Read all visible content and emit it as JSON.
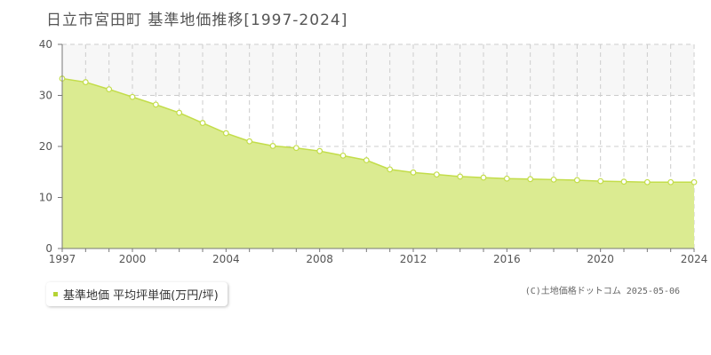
{
  "title": "日立市宮田町 基準地価推移[1997-2024]",
  "legend": {
    "label": "基準地価 平均坪単価(万円/坪)"
  },
  "copyright": "(C)土地価格ドットコム 2025-05-06",
  "colors": {
    "area_fill": "#dbeb91",
    "line": "#c3dd4a",
    "marker_fill": "#ffffff",
    "band": "#f7f7f7",
    "grid": "#cccccc",
    "legend_swatch": "#b5d335"
  },
  "chart_data": {
    "type": "area",
    "title": "日立市宮田町 基準地価推移[1997-2024]",
    "xlabel": "",
    "ylabel": "",
    "x": [
      1997,
      1998,
      1999,
      2000,
      2001,
      2002,
      2003,
      2004,
      2005,
      2006,
      2007,
      2008,
      2009,
      2010,
      2011,
      2012,
      2013,
      2014,
      2015,
      2016,
      2017,
      2018,
      2019,
      2020,
      2021,
      2022,
      2023,
      2024
    ],
    "series": [
      {
        "name": "基準地価 平均坪単価(万円/坪)",
        "values": [
          33.3,
          32.6,
          31.2,
          29.7,
          28.2,
          26.6,
          24.6,
          22.6,
          21.0,
          20.1,
          19.7,
          19.1,
          18.2,
          17.3,
          15.5,
          14.9,
          14.5,
          14.1,
          13.9,
          13.7,
          13.6,
          13.5,
          13.4,
          13.2,
          13.1,
          13.0,
          13.0,
          13.0
        ]
      }
    ],
    "x_ticks": [
      "1997",
      "2000",
      "2004",
      "2008",
      "2012",
      "2016",
      "2020",
      "2024"
    ],
    "y_ticks": [
      "0",
      "10",
      "20",
      "30",
      "40"
    ],
    "xlim": [
      1997,
      2024
    ],
    "ylim": [
      0,
      40
    ],
    "grid": true,
    "legend_position": "bottom-left"
  }
}
